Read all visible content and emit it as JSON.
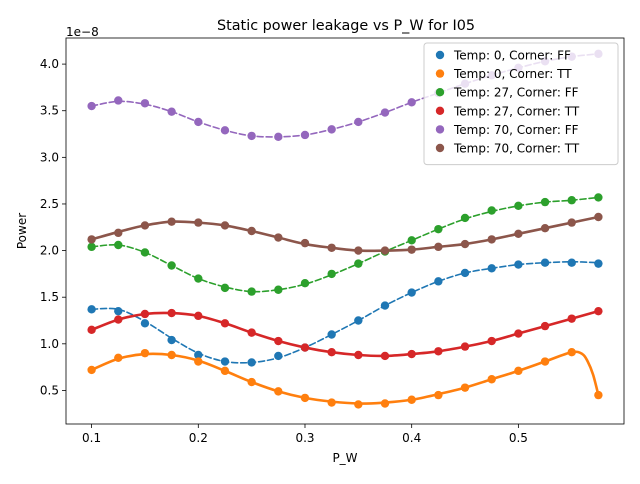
{
  "chart_data": {
    "type": "scatter",
    "title": "Static power leakage vs P_W for I05",
    "xlabel": "P_W",
    "ylabel": "Power",
    "y_scale_label": "1e−8",
    "xlim": [
      0.076,
      0.599
    ],
    "ylim": [
      0.14,
      4.28
    ],
    "x_ticks": [
      0.1,
      0.2,
      0.3,
      0.4,
      0.5
    ],
    "x_tick_labels": [
      "0.1",
      "0.2",
      "0.3",
      "0.4",
      "0.5"
    ],
    "y_ticks": [
      0.5,
      1.0,
      1.5,
      2.0,
      2.5,
      3.0,
      3.5,
      4.0
    ],
    "y_tick_labels": [
      "0.5",
      "1.0",
      "1.5",
      "2.0",
      "2.5",
      "3.0",
      "3.5",
      "4.0"
    ],
    "grid": false,
    "legend_position": "top-right",
    "x": [
      0.1,
      0.125,
      0.15,
      0.175,
      0.2,
      0.225,
      0.25,
      0.275,
      0.3,
      0.325,
      0.35,
      0.375,
      0.4,
      0.425,
      0.45,
      0.475,
      0.5,
      0.525,
      0.55,
      0.575
    ],
    "series": [
      {
        "name": "Temp: 0, Corner: FF",
        "color": "#1f77b4",
        "line_style": "dashed",
        "values": [
          1.37,
          1.35,
          1.22,
          1.04,
          0.88,
          0.81,
          0.8,
          0.87,
          0.96,
          1.1,
          1.25,
          1.41,
          1.55,
          1.67,
          1.76,
          1.81,
          1.85,
          1.87,
          1.87,
          1.86
        ],
        "fit": [
          [
            0.1,
            1.37
          ],
          [
            0.125,
            1.37
          ],
          [
            0.15,
            1.24
          ],
          [
            0.175,
            1.06
          ],
          [
            0.2,
            0.9
          ],
          [
            0.225,
            0.81
          ],
          [
            0.25,
            0.8
          ],
          [
            0.275,
            0.85
          ],
          [
            0.3,
            0.96
          ],
          [
            0.325,
            1.1
          ],
          [
            0.35,
            1.25
          ],
          [
            0.375,
            1.41
          ],
          [
            0.4,
            1.55
          ],
          [
            0.425,
            1.67
          ],
          [
            0.45,
            1.76
          ],
          [
            0.475,
            1.81
          ],
          [
            0.5,
            1.85
          ],
          [
            0.525,
            1.87
          ],
          [
            0.55,
            1.88
          ],
          [
            0.575,
            1.87
          ]
        ]
      },
      {
        "name": "Temp: 0, Corner: TT",
        "color": "#ff7f0e",
        "line_style": "solid",
        "values": [
          0.72,
          0.85,
          0.9,
          0.88,
          0.81,
          0.71,
          0.59,
          0.49,
          0.42,
          0.37,
          0.35,
          0.36,
          0.4,
          0.45,
          0.53,
          0.62,
          0.71,
          0.81,
          0.91,
          0.45
        ],
        "fit": [
          [
            0.1,
            0.72
          ],
          [
            0.125,
            0.84
          ],
          [
            0.15,
            0.89
          ],
          [
            0.175,
            0.88
          ],
          [
            0.2,
            0.82
          ],
          [
            0.225,
            0.71
          ],
          [
            0.25,
            0.59
          ],
          [
            0.275,
            0.49
          ],
          [
            0.3,
            0.42
          ],
          [
            0.325,
            0.38
          ],
          [
            0.35,
            0.36
          ],
          [
            0.375,
            0.37
          ],
          [
            0.4,
            0.4
          ],
          [
            0.425,
            0.46
          ],
          [
            0.45,
            0.53
          ],
          [
            0.475,
            0.62
          ],
          [
            0.5,
            0.71
          ],
          [
            0.525,
            0.81
          ],
          [
            0.55,
            0.91
          ],
          [
            0.56,
            0.89
          ],
          [
            0.565,
            0.81
          ],
          [
            0.57,
            0.67
          ],
          [
            0.575,
            0.45
          ]
        ]
      },
      {
        "name": "Temp: 27, Corner: FF",
        "color": "#2ca02c",
        "line_style": "dashed",
        "values": [
          2.04,
          2.06,
          1.98,
          1.84,
          1.7,
          1.6,
          1.56,
          1.58,
          1.65,
          1.75,
          1.86,
          1.99,
          2.11,
          2.23,
          2.35,
          2.43,
          2.48,
          2.52,
          2.54,
          2.57
        ],
        "fit": [
          [
            0.1,
            2.04
          ],
          [
            0.125,
            2.06
          ],
          [
            0.15,
            1.98
          ],
          [
            0.175,
            1.84
          ],
          [
            0.2,
            1.7
          ],
          [
            0.225,
            1.61
          ],
          [
            0.25,
            1.56
          ],
          [
            0.275,
            1.58
          ],
          [
            0.3,
            1.64
          ],
          [
            0.325,
            1.74
          ],
          [
            0.35,
            1.86
          ],
          [
            0.375,
            1.99
          ],
          [
            0.4,
            2.11
          ],
          [
            0.425,
            2.23
          ],
          [
            0.45,
            2.34
          ],
          [
            0.475,
            2.42
          ],
          [
            0.5,
            2.48
          ],
          [
            0.525,
            2.52
          ],
          [
            0.55,
            2.54
          ],
          [
            0.575,
            2.57
          ]
        ]
      },
      {
        "name": "Temp: 27, Corner: TT",
        "color": "#d62728",
        "line_style": "solid",
        "values": [
          1.15,
          1.26,
          1.32,
          1.33,
          1.3,
          1.22,
          1.12,
          1.03,
          0.96,
          0.91,
          0.88,
          0.87,
          0.89,
          0.92,
          0.97,
          1.03,
          1.11,
          1.19,
          1.27,
          1.35
        ],
        "fit": [
          [
            0.1,
            1.15
          ],
          [
            0.125,
            1.26
          ],
          [
            0.15,
            1.32
          ],
          [
            0.175,
            1.33
          ],
          [
            0.2,
            1.3
          ],
          [
            0.225,
            1.22
          ],
          [
            0.25,
            1.12
          ],
          [
            0.275,
            1.03
          ],
          [
            0.3,
            0.96
          ],
          [
            0.325,
            0.91
          ],
          [
            0.35,
            0.88
          ],
          [
            0.375,
            0.87
          ],
          [
            0.4,
            0.89
          ],
          [
            0.425,
            0.92
          ],
          [
            0.45,
            0.97
          ],
          [
            0.475,
            1.03
          ],
          [
            0.5,
            1.11
          ],
          [
            0.525,
            1.19
          ],
          [
            0.55,
            1.27
          ],
          [
            0.575,
            1.35
          ]
        ]
      },
      {
        "name": "Temp: 70, Corner: FF",
        "color": "#9467bd",
        "line_style": "dashed",
        "values": [
          3.55,
          3.61,
          3.58,
          3.49,
          3.38,
          3.29,
          3.23,
          3.22,
          3.24,
          3.3,
          3.38,
          3.48,
          3.59,
          3.69,
          3.79,
          3.88,
          3.96,
          4.03,
          4.08,
          4.11
        ],
        "fit": [
          [
            0.1,
            3.55
          ],
          [
            0.125,
            3.6
          ],
          [
            0.15,
            3.57
          ],
          [
            0.175,
            3.49
          ],
          [
            0.2,
            3.38
          ],
          [
            0.225,
            3.29
          ],
          [
            0.25,
            3.23
          ],
          [
            0.275,
            3.22
          ],
          [
            0.3,
            3.24
          ],
          [
            0.325,
            3.3
          ],
          [
            0.35,
            3.38
          ],
          [
            0.375,
            3.48
          ],
          [
            0.4,
            3.59
          ],
          [
            0.425,
            3.69
          ],
          [
            0.45,
            3.79
          ],
          [
            0.475,
            3.88
          ],
          [
            0.5,
            3.96
          ],
          [
            0.525,
            4.03
          ],
          [
            0.55,
            4.08
          ],
          [
            0.575,
            4.11
          ]
        ]
      },
      {
        "name": "Temp: 70, Corner: TT",
        "color": "#8c564b",
        "line_style": "solid",
        "values": [
          2.12,
          2.19,
          2.27,
          2.31,
          2.3,
          2.27,
          2.21,
          2.14,
          2.08,
          2.03,
          2.0,
          2.0,
          2.01,
          2.04,
          2.07,
          2.12,
          2.18,
          2.24,
          2.3,
          2.36
        ],
        "fit": [
          [
            0.1,
            2.12
          ],
          [
            0.125,
            2.2
          ],
          [
            0.15,
            2.27
          ],
          [
            0.175,
            2.31
          ],
          [
            0.2,
            2.3
          ],
          [
            0.225,
            2.27
          ],
          [
            0.25,
            2.21
          ],
          [
            0.275,
            2.14
          ],
          [
            0.3,
            2.07
          ],
          [
            0.325,
            2.03
          ],
          [
            0.35,
            2.0
          ],
          [
            0.375,
            2.0
          ],
          [
            0.4,
            2.01
          ],
          [
            0.425,
            2.04
          ],
          [
            0.45,
            2.07
          ],
          [
            0.475,
            2.12
          ],
          [
            0.5,
            2.18
          ],
          [
            0.525,
            2.24
          ],
          [
            0.55,
            2.3
          ],
          [
            0.575,
            2.36
          ]
        ]
      }
    ]
  }
}
